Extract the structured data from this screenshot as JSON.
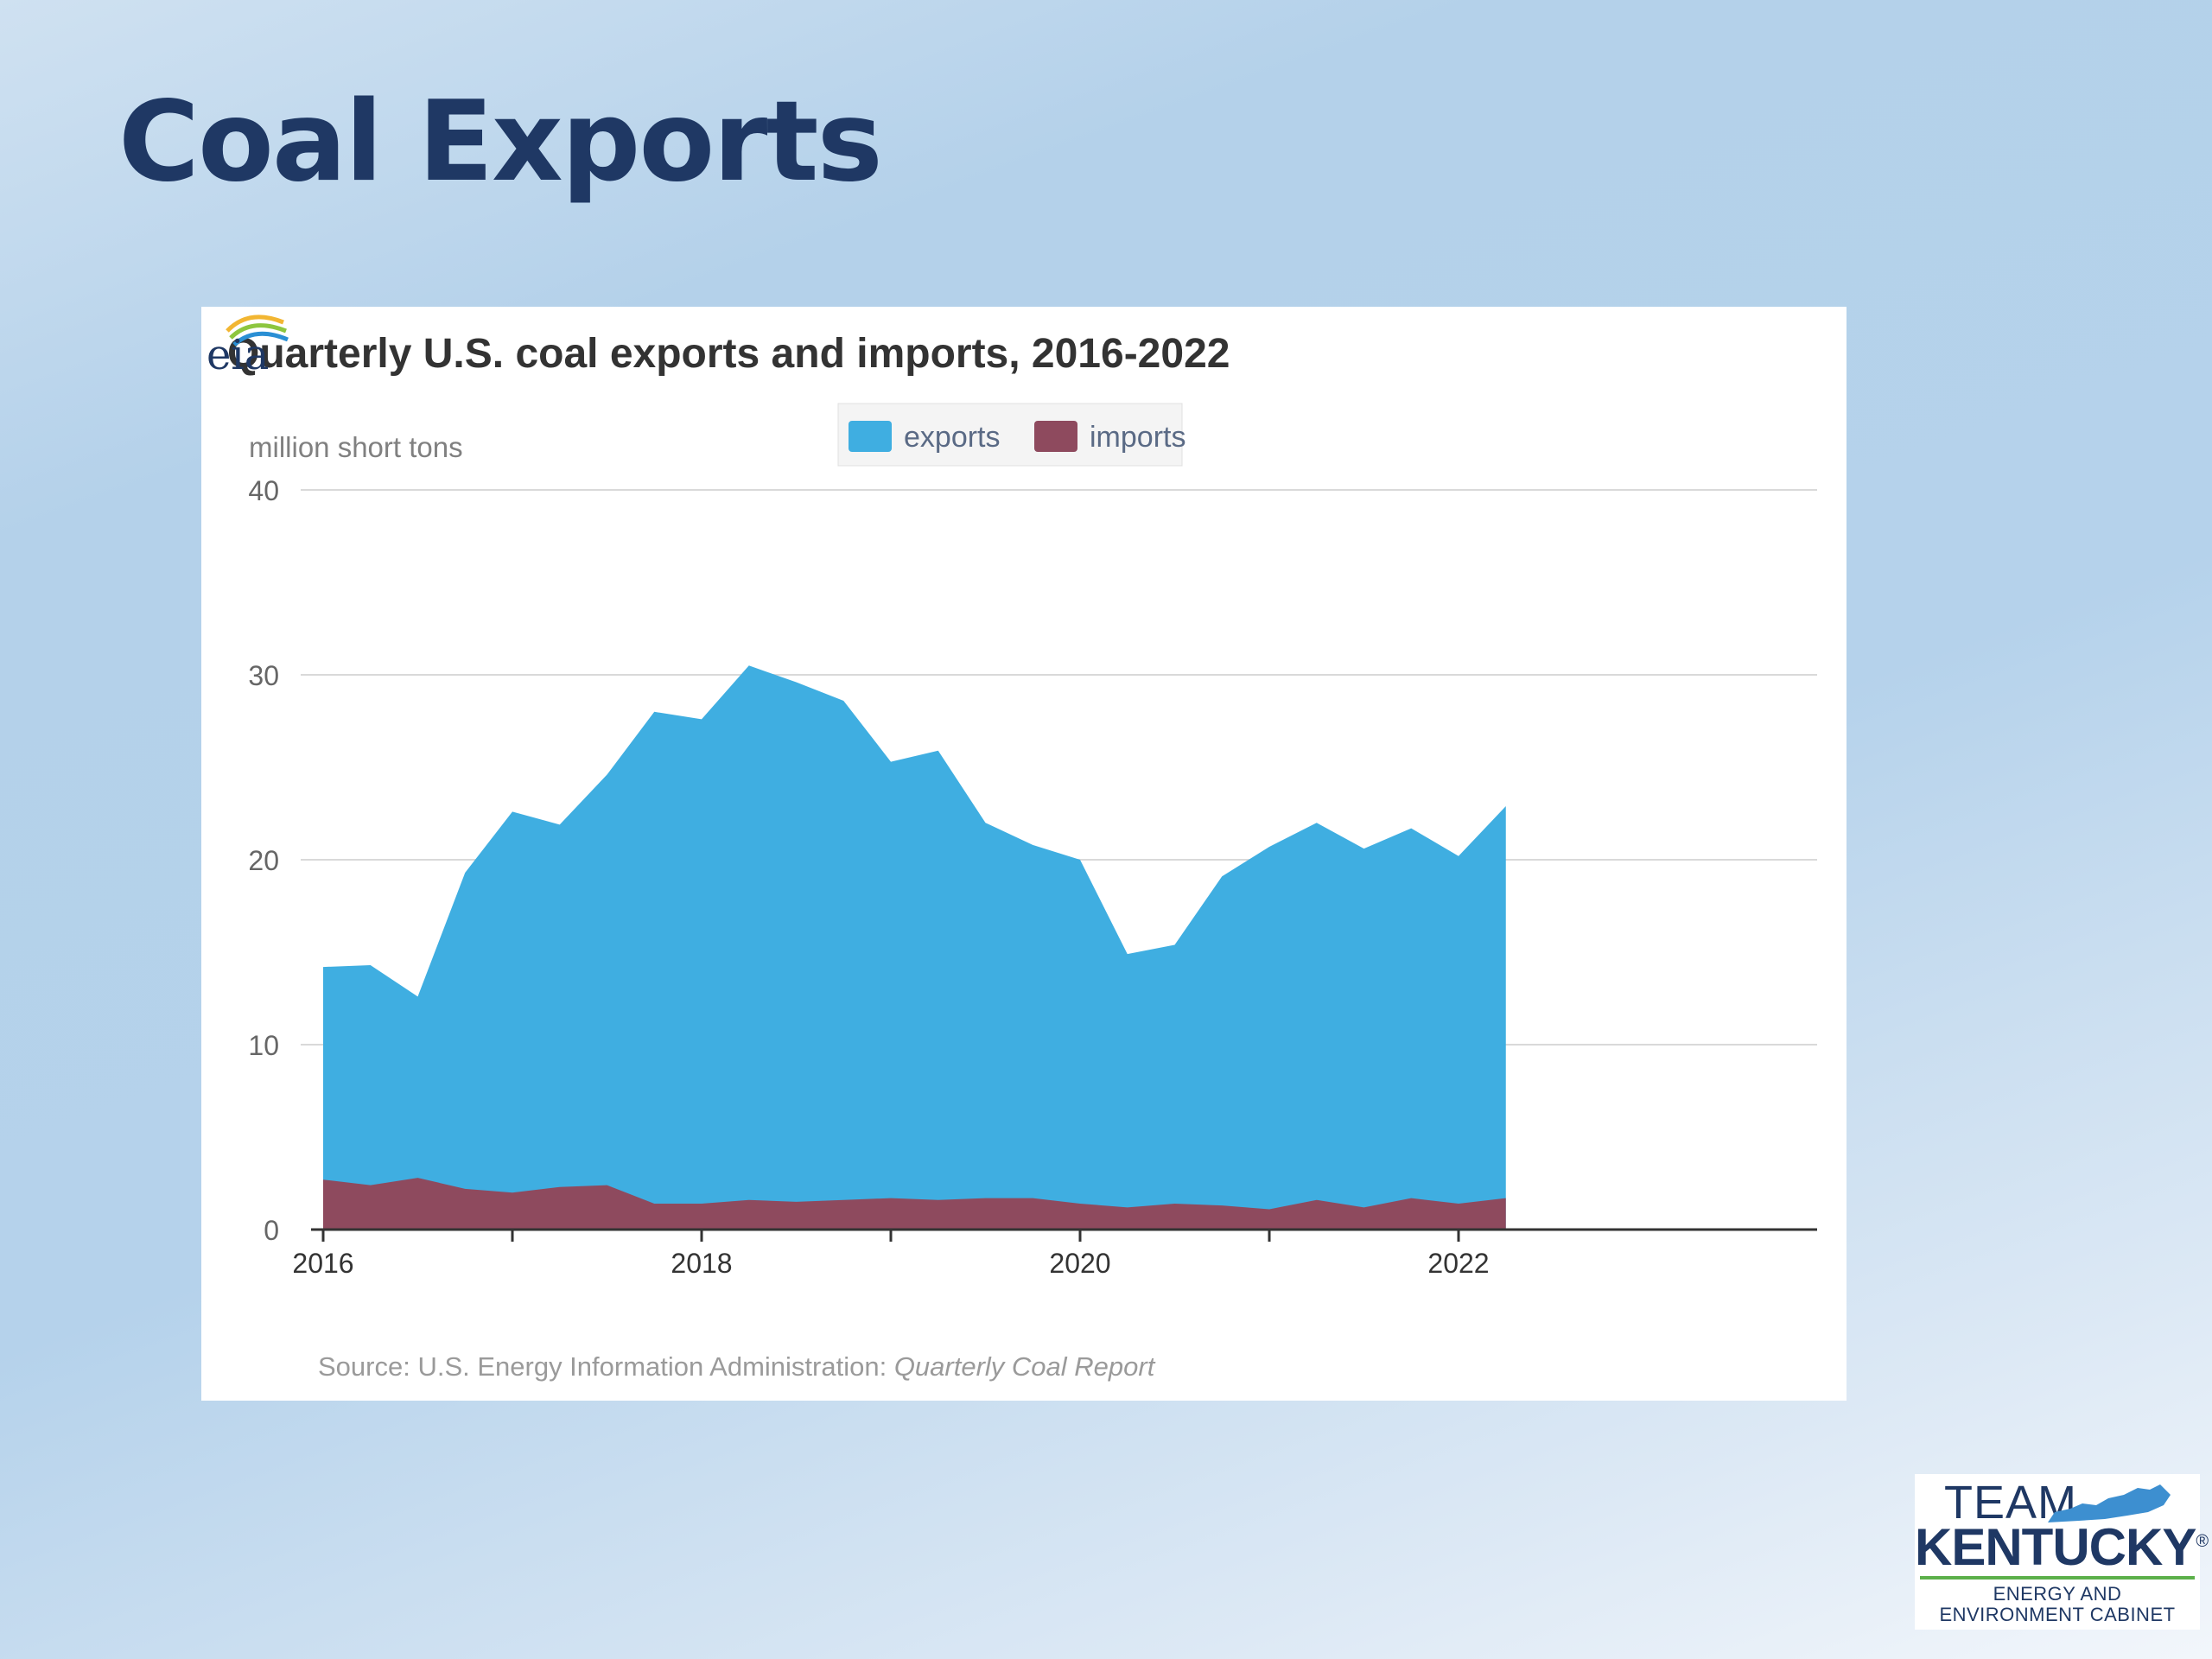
{
  "slide": {
    "title": "Coal Exports",
    "logo": {
      "line1": "TEAM",
      "line2": "KENTUCKY",
      "registered": "®",
      "line3": "ENERGY AND",
      "line4": "ENVIRONMENT CABINET"
    }
  },
  "source": {
    "prefix": "Source: U.S. Energy Information Administration: ",
    "report": "Quarterly Coal Report",
    "logo_text": "eia"
  },
  "colors": {
    "exports": "#3faee1",
    "imports": "#8e4a5e",
    "title": "#1f3864"
  },
  "chart_data": {
    "type": "area",
    "title": "Quarterly U.S. coal exports and imports, 2016-2022",
    "ylabel": "million short tons",
    "xlabel": "",
    "ylim": [
      0,
      40
    ],
    "yticks": [
      "0",
      "10",
      "20",
      "30",
      "40"
    ],
    "xticks": [
      "2016",
      "2018",
      "2020",
      "2022"
    ],
    "legend_position": "top-center",
    "grid": true,
    "x": [
      "2016-Q1",
      "2016-Q2",
      "2016-Q3",
      "2016-Q4",
      "2017-Q1",
      "2017-Q2",
      "2017-Q3",
      "2017-Q4",
      "2018-Q1",
      "2018-Q2",
      "2018-Q3",
      "2018-Q4",
      "2019-Q1",
      "2019-Q2",
      "2019-Q3",
      "2019-Q4",
      "2020-Q1",
      "2020-Q2",
      "2020-Q3",
      "2020-Q4",
      "2021-Q1",
      "2021-Q2",
      "2021-Q3",
      "2021-Q4",
      "2022-Q1",
      "2022-Q2"
    ],
    "series": [
      {
        "name": "exports",
        "values": [
          14.2,
          14.3,
          12.6,
          19.3,
          22.6,
          21.9,
          24.6,
          28.0,
          27.6,
          30.5,
          29.6,
          28.6,
          25.3,
          25.9,
          22.0,
          20.8,
          20.0,
          14.9,
          15.4,
          19.1,
          20.7,
          22.0,
          20.6,
          21.7,
          20.2,
          22.9
        ]
      },
      {
        "name": "imports",
        "values": [
          2.7,
          2.4,
          2.8,
          2.2,
          2.0,
          2.3,
          2.4,
          1.4,
          1.4,
          1.6,
          1.5,
          1.6,
          1.7,
          1.6,
          1.7,
          1.7,
          1.4,
          1.2,
          1.4,
          1.3,
          1.1,
          1.6,
          1.2,
          1.7,
          1.4,
          1.7
        ]
      }
    ]
  }
}
